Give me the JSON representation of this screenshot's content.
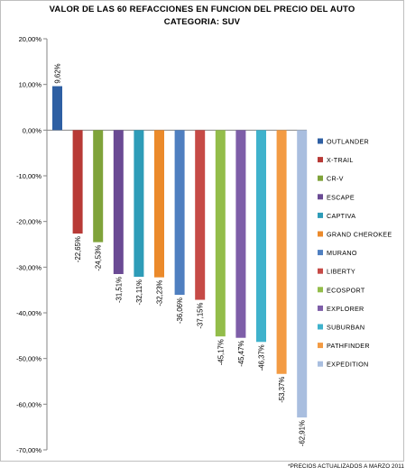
{
  "chart_data": {
    "type": "bar",
    "title": "VALOR DE LAS 60 REFACCIONES EN FUNCION DEL PRECIO DEL AUTO",
    "subtitle": "CATEGORIA: SUV",
    "footnote": "*PRECIOS ACTUALIZADOS A MARZO 2011",
    "xlabel": "",
    "ylabel": "",
    "ylim": [
      -70,
      20
    ],
    "y_ticks": [
      20,
      10,
      0,
      -10,
      -20,
      -30,
      -40,
      -50,
      -60,
      -70
    ],
    "y_tick_labels": [
      "20,00%",
      "10,00%",
      "0,00%",
      "-10,00%",
      "-20,00%",
      "-30,00%",
      "-40,00%",
      "-50,00%",
      "-60,00%",
      "-70,00%"
    ],
    "grid": false,
    "legend_position": "right",
    "categories": [
      "OUTLANDER",
      "X-TRAIL",
      "CR-V",
      "ESCAPE",
      "CAPTIVA",
      "GRAND CHEROKEE",
      "MURANO",
      "LIBERTY",
      "ECOSPORT",
      "EXPLORER",
      "SUBURBAN",
      "PATHFINDER",
      "EXPEDITION"
    ],
    "values": [
      9.62,
      -22.65,
      -24.53,
      -31.51,
      -32.11,
      -32.23,
      -36.06,
      -37.15,
      -45.17,
      -45.47,
      -46.37,
      -53.37,
      -62.91
    ],
    "data_labels": [
      "9,62%",
      "-22,65%",
      "-24,53%",
      "-31,51%",
      "-32,11%",
      "-32,23%",
      "-36,06%",
      "-37,15%",
      "-45,17%",
      "-45,47%",
      "-46,37%",
      "-53,37%",
      "-62,91%"
    ],
    "colors": [
      "#2E5FA3",
      "#B83A36",
      "#7FA33A",
      "#6A4A94",
      "#2E9CB8",
      "#EB8A2B",
      "#4F7FC0",
      "#C64A46",
      "#93BD4A",
      "#7E5EA8",
      "#3FB2CC",
      "#F39B43",
      "#A9BEDF"
    ]
  }
}
